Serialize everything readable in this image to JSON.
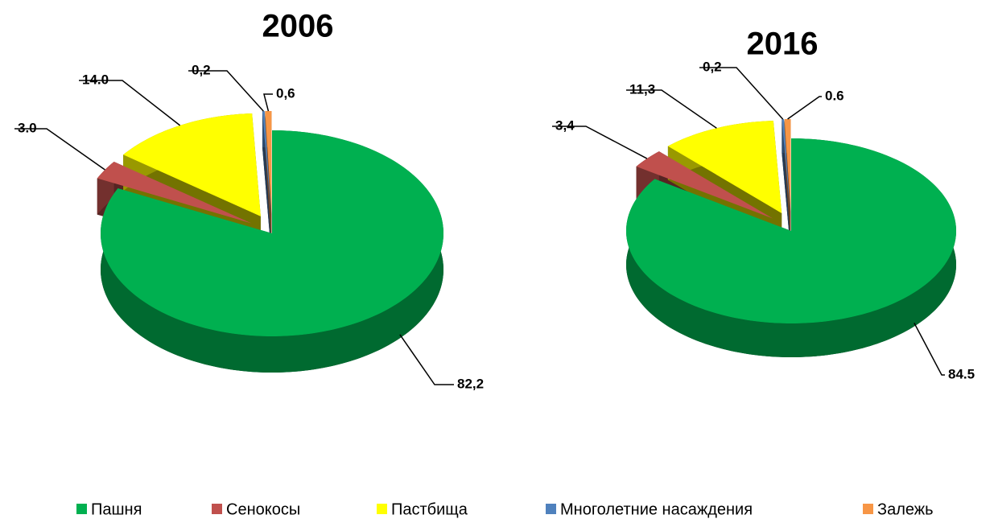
{
  "chart_data": [
    {
      "type": "pie3d",
      "title": "2006",
      "categories": [
        "Пашня",
        "Сенокосы",
        "Пастбища",
        "Многолетние насаждения",
        "Залежь"
      ],
      "colors": [
        "#00b050",
        "#c0504d",
        "#ffff00",
        "#4f81bd",
        "#f79646"
      ],
      "values": [
        82.2,
        3.0,
        14.0,
        0.2,
        0.6
      ],
      "value_labels": [
        "82,2",
        "3.0",
        "14.0",
        "0,2",
        "0,6"
      ]
    },
    {
      "type": "pie3d",
      "title": "2016",
      "values": [
        84.5,
        3.4,
        11.3,
        0.2,
        0.6
      ],
      "value_labels": [
        "84.5",
        "3,4",
        "11,3",
        "0,2",
        "0.6"
      ]
    }
  ]
}
